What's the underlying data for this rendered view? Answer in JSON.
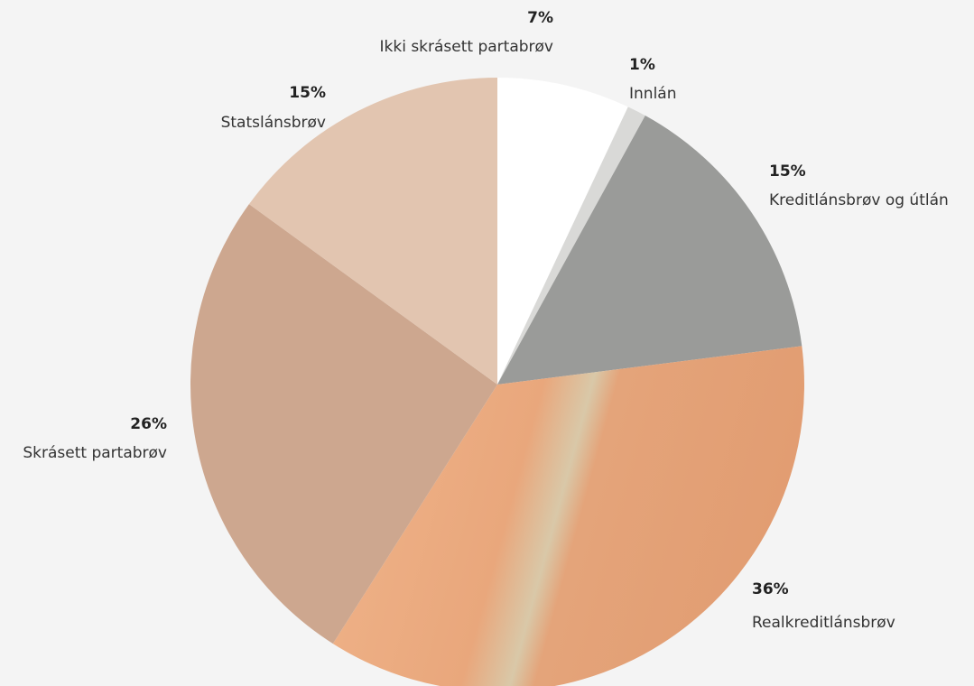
{
  "chart_data": {
    "type": "pie",
    "categories": [
      "Ikki skrásett partabrøv",
      "Innlán",
      "Kreditlánsbrøv og útlán",
      "Realkreditlánsbrøv",
      "Skrásett partabrøv",
      "Statslánsbrøv"
    ],
    "values": [
      7,
      1,
      15,
      36,
      26,
      15
    ],
    "value_labels": [
      "7%",
      "1%",
      "15%",
      "36%",
      "26%",
      "15%"
    ],
    "colors": [
      "#ffffff",
      "#d9d9d7",
      "#9a9b99",
      "#e6a77c",
      "#cda78f",
      "#e2c5b0"
    ]
  }
}
